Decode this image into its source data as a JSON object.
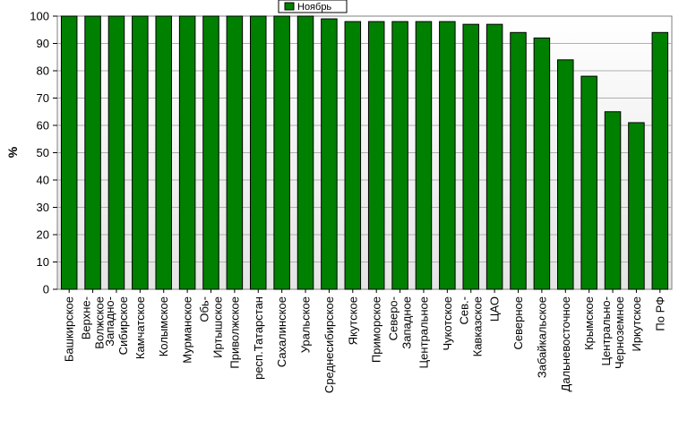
{
  "chart_data": {
    "type": "bar",
    "title": "",
    "xlabel": "",
    "ylabel": "%",
    "ylim": [
      0,
      100
    ],
    "yticks": [
      0,
      10,
      20,
      30,
      40,
      50,
      60,
      70,
      80,
      90,
      100
    ],
    "grid": true,
    "legend_position": "top-center",
    "categories": [
      "Башкирское",
      "Верхне-Волжское",
      "Западно-Сибирское",
      "Камчатское",
      "Колымское",
      "Мурманское",
      "Обь-Иртышское",
      "Приволжское",
      "респ.Татарстан",
      "Сахалинское",
      "Уральское",
      "Среднесибирское",
      "Якутское",
      "Приморское",
      "Северо-Западное",
      "Центральное",
      "Чукотское",
      "Сев.-Кавказское",
      "ЦАО",
      "Северное",
      "Забайкальское",
      "Дальневосточное",
      "Крымское",
      "Центрально-Черноземное",
      "Иркутское",
      "По РФ"
    ],
    "category_lines": [
      [
        "Башкирское"
      ],
      [
        "Верхне-",
        "Волжское"
      ],
      [
        "Западно-",
        "Сибирское"
      ],
      [
        "Камчатское"
      ],
      [
        "Колымское"
      ],
      [
        "Мурманское"
      ],
      [
        "Обь-",
        "Иртышское"
      ],
      [
        "Приволжское"
      ],
      [
        "респ.Татарстан"
      ],
      [
        "Сахалинское"
      ],
      [
        "Уральское"
      ],
      [
        "Среднесибирское"
      ],
      [
        "Якутское"
      ],
      [
        "Приморское"
      ],
      [
        "Северо-",
        "Западное"
      ],
      [
        "Центральное"
      ],
      [
        "Чукотское"
      ],
      [
        "Сев.-",
        "Кавказское"
      ],
      [
        "ЦАО"
      ],
      [
        "Северное"
      ],
      [
        "Забайкальское"
      ],
      [
        "Дальневосточное"
      ],
      [
        "Крымское"
      ],
      [
        "Центрально-",
        "Черноземное"
      ],
      [
        "Иркутское"
      ],
      [
        "По РФ"
      ]
    ],
    "series": [
      {
        "name": "Ноябрь",
        "color": "#008000",
        "values": [
          100,
          100,
          100,
          100,
          100,
          100,
          100,
          100,
          100,
          100,
          100,
          99,
          98,
          98,
          98,
          98,
          98,
          97,
          97,
          94,
          92,
          84,
          78,
          65,
          61,
          94
        ]
      }
    ]
  },
  "colors": {
    "bar": "#008000",
    "bar_border": "#000000",
    "plot_background_top": "#ffffff",
    "plot_background_bottom": "#e0e0e0",
    "gridline": "#b0b0b0"
  }
}
